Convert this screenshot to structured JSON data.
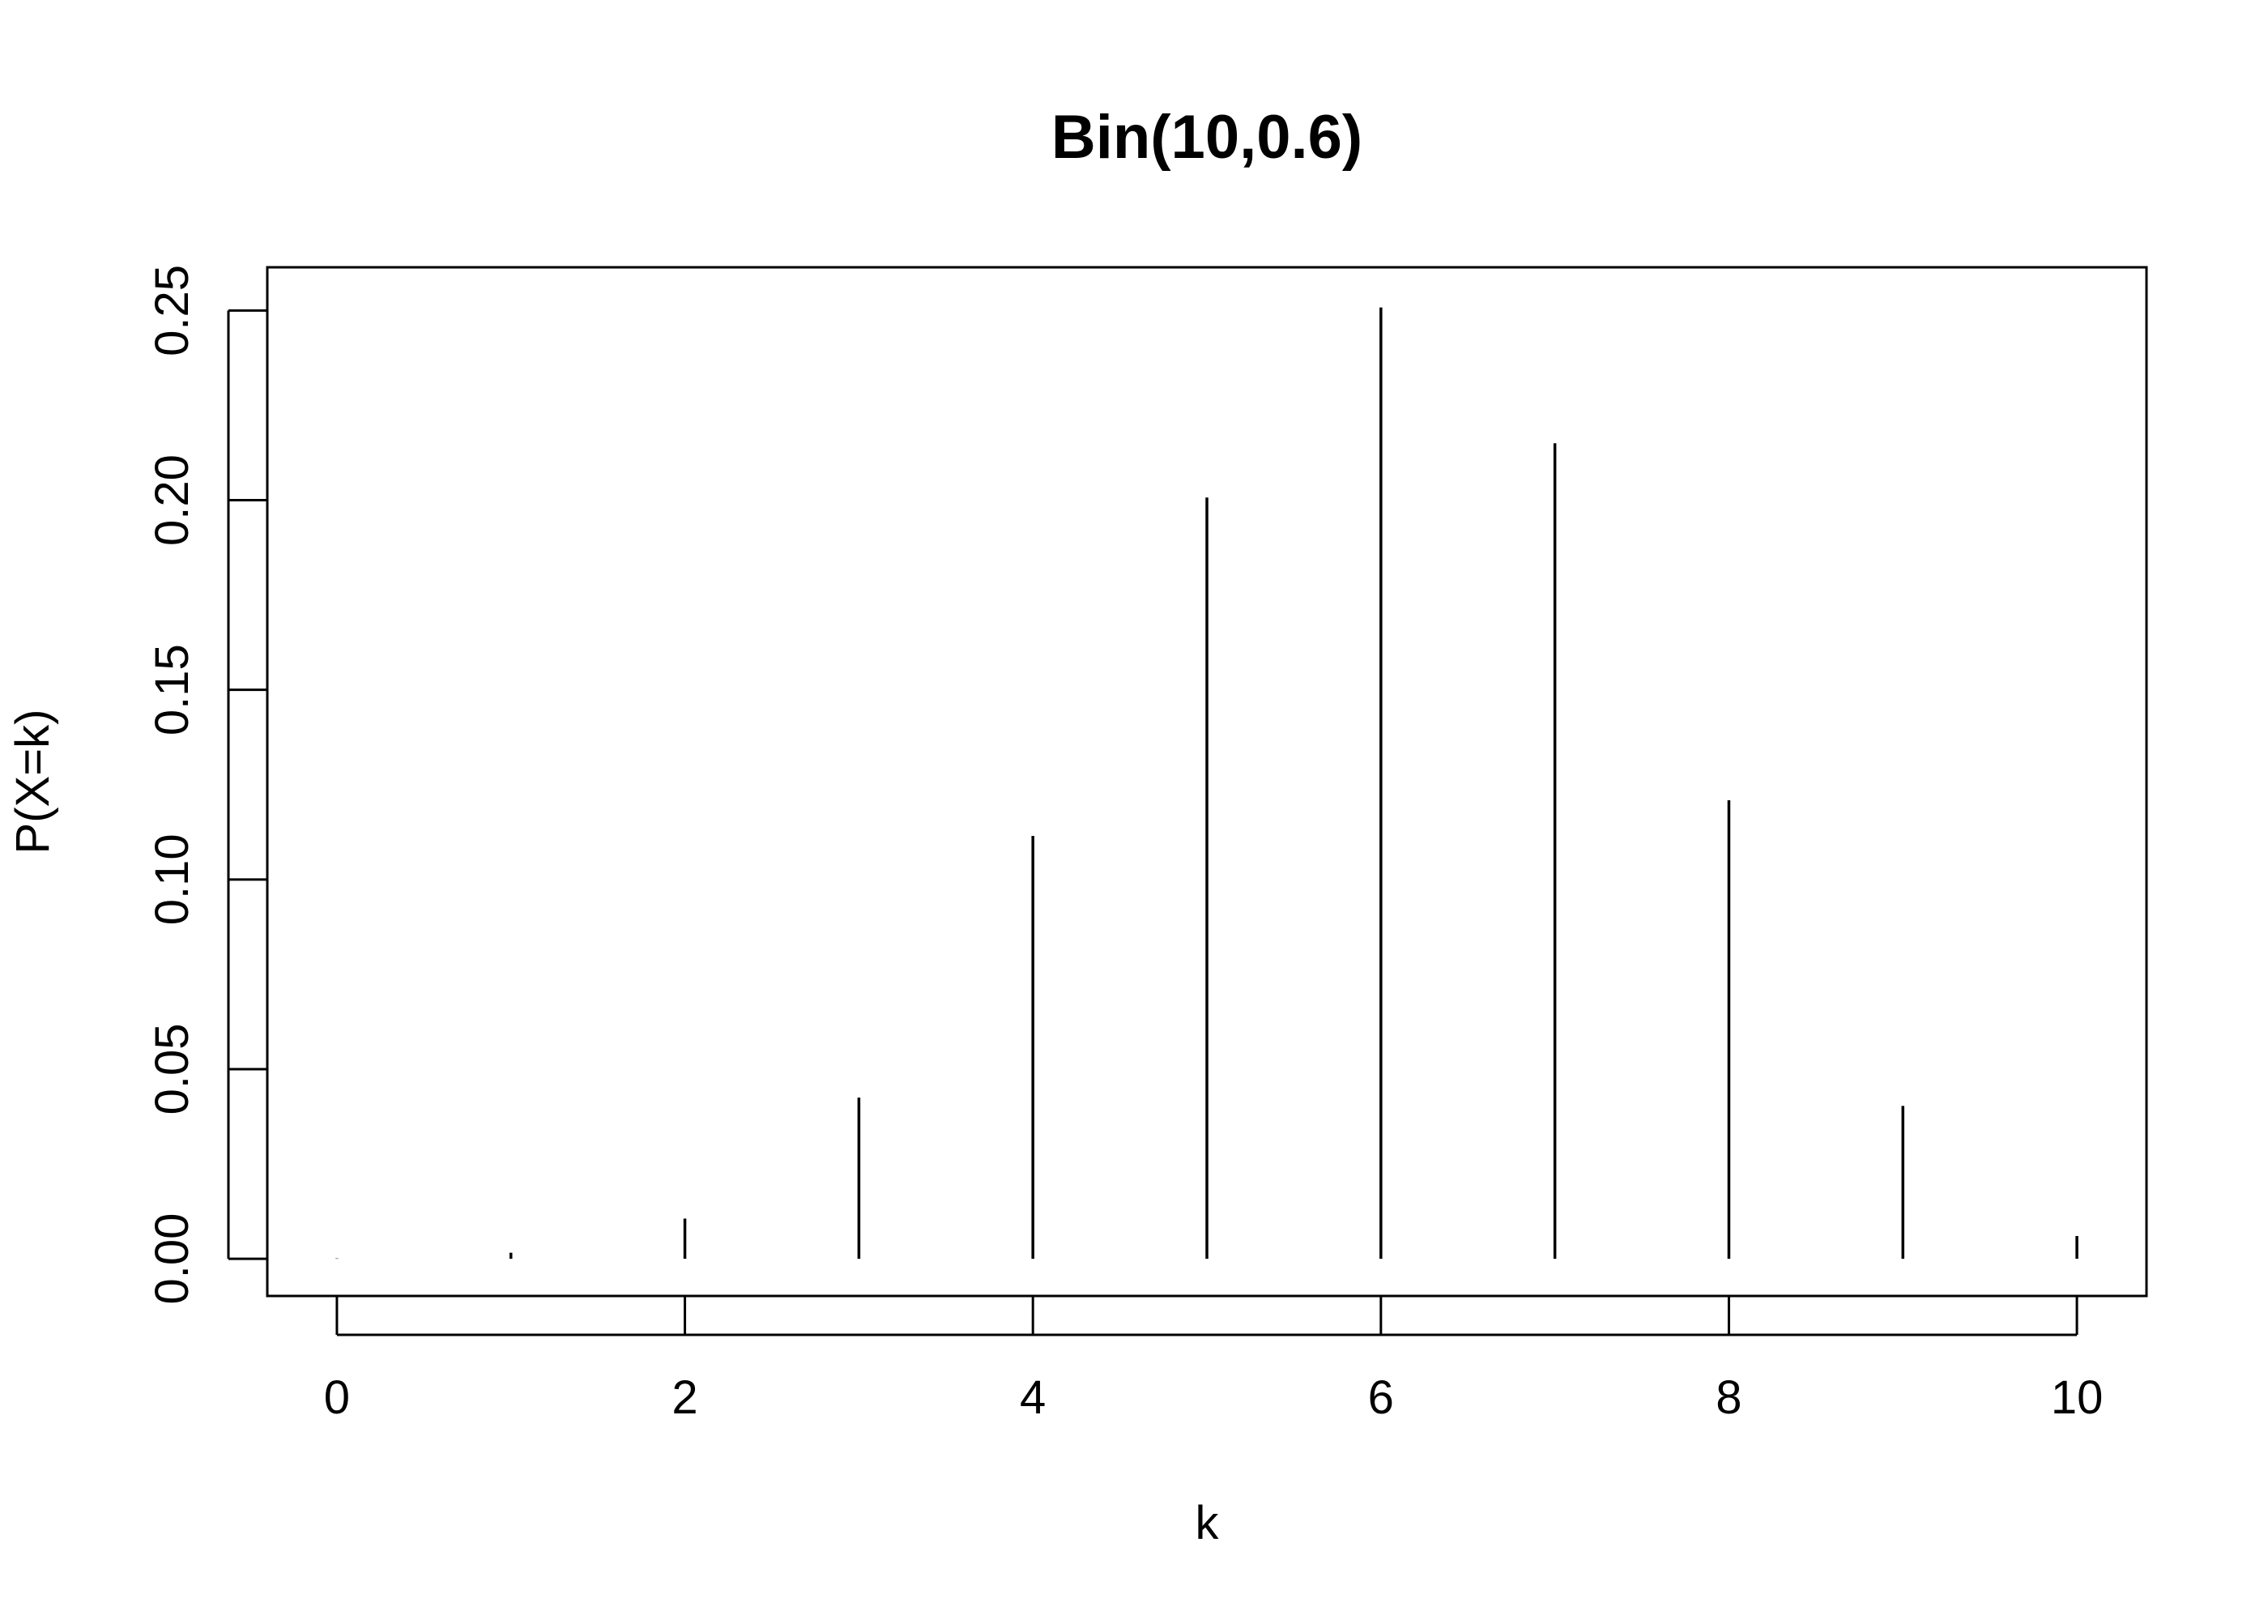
{
  "chart_data": {
    "type": "bar",
    "subtype": "histogram-spikes",
    "title": "Bin(10,0.6)",
    "xlabel": "k",
    "ylabel": "P(X=k)",
    "x": [
      0,
      1,
      2,
      3,
      4,
      5,
      6,
      7,
      8,
      9,
      10
    ],
    "values": [
      0.0001,
      0.0016,
      0.0106,
      0.0425,
      0.1115,
      0.2007,
      0.2508,
      0.215,
      0.1209,
      0.0403,
      0.006
    ],
    "xlim": [
      -0.4,
      10.4
    ],
    "ylim": [
      -0.0098,
      0.2614
    ],
    "x_ticks": [
      0,
      2,
      4,
      6,
      8,
      10
    ],
    "x_tick_labels": [
      "0",
      "2",
      "4",
      "6",
      "8",
      "10"
    ],
    "y_ticks": [
      0,
      0.05,
      0.1,
      0.15,
      0.2,
      0.25
    ],
    "y_tick_labels": [
      "0.00",
      "0.05",
      "0.10",
      "0.15",
      "0.20",
      "0.25"
    ],
    "grid": false,
    "legend": "none",
    "colors": {
      "spike": "#000000",
      "axis": "#000000",
      "background": "#ffffff"
    }
  }
}
